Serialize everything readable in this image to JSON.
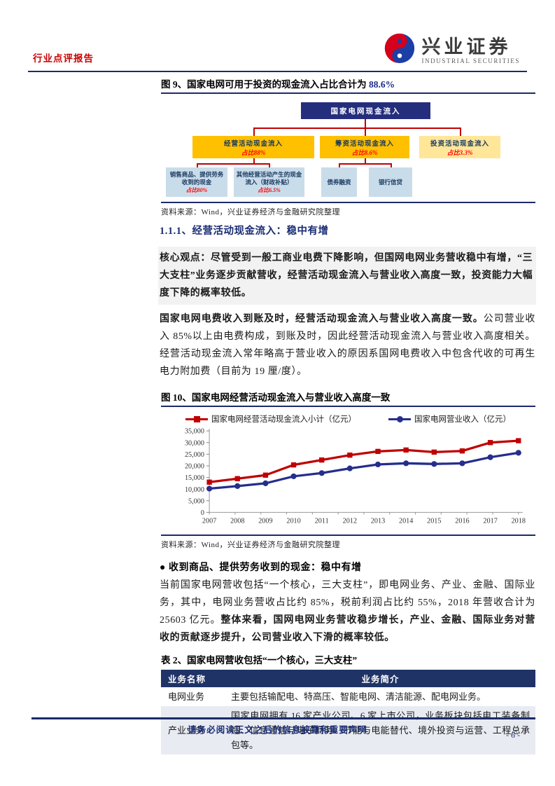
{
  "header": {
    "report_type": "行业点评报告",
    "brand_cn": "兴业证券",
    "brand_en": "INDUSTRIAL SECURITIES"
  },
  "figure9": {
    "title_prefix": "图 9、国家电网可用于投资的现金流入占比合计为 ",
    "title_highlight": "88.6%",
    "root": {
      "label": "国家电网现金流入"
    },
    "level2": [
      {
        "label": "经营活动现金流入",
        "share": "占比88%"
      },
      {
        "label": "筹资活动现金流入",
        "share": "占比8.6%"
      },
      {
        "label": "投资活动现金流入",
        "share": "占比3.3%"
      }
    ],
    "level3": [
      {
        "label": "销售商品、提供劳务收到的现金",
        "share": "占比80%"
      },
      {
        "label": "其他经营活动产生的现金流入（财政补贴）",
        "share": "占比6.5%"
      },
      {
        "label": "债券融资"
      },
      {
        "label": "银行信贷"
      }
    ],
    "source": "资料来源：Wind，兴业证券经济与金融研究院整理"
  },
  "section1": {
    "heading": "1.1.1、经营活动现金流入：稳中有增",
    "core_view": "核心观点：尽管受到一般工商业电费下降影响，但国网电网业务营收稳中有增，“三大支柱”业务逐步贡献营收，经营活动现金流入与营业收入高度一致，投资能力大幅度下降的概率较低。",
    "para1_bold": "国家电网电费收入到账及时，经营活动现金流入与营业收入高度一致。",
    "para1_rest": "公司营业收入 85%以上由电费构成，到账及时，因此经营活动现金流入与营业收入高度相关。经营活动现金流入常年略高于营业收入的原因系国网电费收入中包含代收的可再生电力附加费（目前为 19 厘/度）。"
  },
  "figure10": {
    "title": "图 10、国家电网经营活动现金流入与营业收入高度一致",
    "source": "资料来源：Wind，兴业证券经济与金融研究院整理",
    "chart_data": {
      "type": "line",
      "x": [
        2007,
        2008,
        2009,
        2010,
        2011,
        2012,
        2013,
        2014,
        2015,
        2016,
        2017,
        2018
      ],
      "series": [
        {
          "name": "国家电网经营活动现金流入小计（亿元）",
          "color": "#c00000",
          "marker": "square",
          "values": [
            13000,
            14500,
            16000,
            20400,
            22500,
            24600,
            26200,
            26800,
            25900,
            26400,
            30000,
            30800
          ]
        },
        {
          "name": "国家电网营业收入（亿元）",
          "color": "#252e8c",
          "marker": "circle",
          "values": [
            10200,
            11300,
            12500,
            15500,
            16900,
            18900,
            20600,
            21100,
            20800,
            21100,
            23700,
            25600
          ]
        }
      ],
      "ylim": [
        0,
        35000
      ],
      "ytick_step": 5000,
      "xlabel": "",
      "ylabel": "",
      "grid": false,
      "legend_position": "top"
    }
  },
  "section2": {
    "bullet_heading": "● 收到商品、提供劳务收到的现金：稳中有增",
    "para_normal": "当前国家电网营收包括“一个核心，三大支柱”，即电网业务、产业、金融、国际业务，其中，电网业务营收占比约 85%，税前利润占比约 55%，2018 年营收合计为 25603 亿元。",
    "para_bold": "整体来看，国网电网业务营收稳步增长，产业、金融、国际业务对营收的贡献逐步提升，公司营业收入下滑的概率较低。"
  },
  "table2": {
    "title": "表 2、国家电网营收包括“一个核心，三大支柱”",
    "headers": [
      "业务名称",
      "业务简介"
    ],
    "rows": [
      [
        "电网业务",
        "主要包括输配电、特高压、智能电网、清洁能源、配电网业务。"
      ],
      [
        "产业业务",
        "国家电网拥有 16 家产业公司、6 家上市公司，业务板块包括电工装备制造、信息通信与电子商务、节能与电能替代、境外投资与运营、工程总承包等。"
      ]
    ]
  },
  "footer": {
    "disclaimer": "请务必阅读正文之后的信息披露和重要声明",
    "page_number": "- 6 -"
  },
  "colors": {
    "accent_navy": "#1b2a6b",
    "brand_red": "#cc0000",
    "connector_red": "#c00000",
    "gold_box": "#ffc000",
    "cream_box": "#ffe699",
    "light_blue_box": "#c9dcea",
    "root_box_navy": "#252e7d",
    "series_red": "#c00000",
    "series_blue": "#252e8c",
    "highlight_bg": "#f2f2f2",
    "table_header_navy": "#1f3366",
    "table_alt_row": "#e8ebf2"
  }
}
